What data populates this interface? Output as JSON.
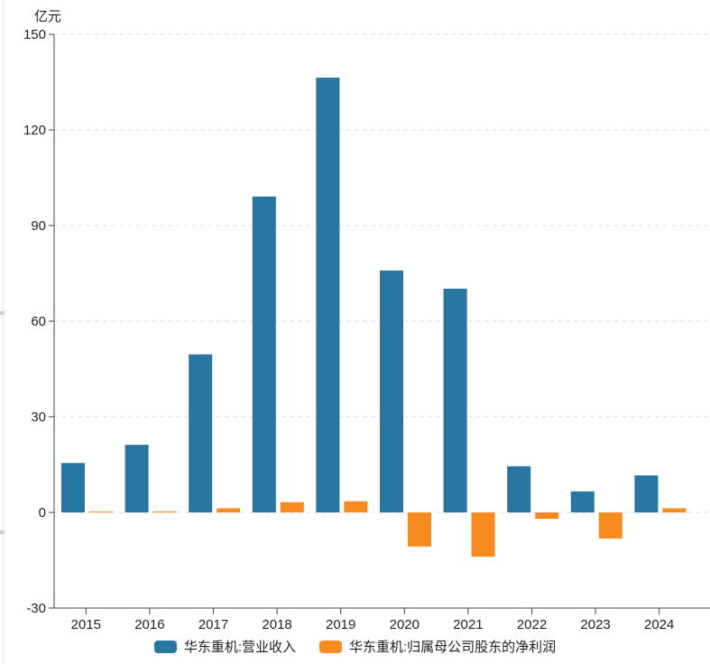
{
  "unit_label": "亿元",
  "chart_data": {
    "type": "bar",
    "title": "",
    "ylabel": "亿元",
    "categories": [
      "2015",
      "2016",
      "2017",
      "2018",
      "2019",
      "2020",
      "2021",
      "2022",
      "2023",
      "2024"
    ],
    "series": [
      {
        "name": "华东重机:营业收入",
        "color": "#2876a2",
        "values": [
          15.5,
          21.2,
          49.6,
          99.1,
          136.4,
          75.9,
          70.2,
          14.5,
          6.6,
          11.6
        ]
      },
      {
        "name": "华东重机:归属母公司股东的净利润",
        "color": "#f78b20",
        "values": [
          0.3,
          0.3,
          1.3,
          3.2,
          3.5,
          -10.7,
          -13.9,
          -2.0,
          -8.2,
          1.3
        ]
      }
    ],
    "ylim": [
      -30,
      150
    ],
    "yticks": [
      150,
      120,
      90,
      60,
      30,
      0,
      -30
    ],
    "grid": "dashed-horizontal",
    "legend_position": "bottom"
  },
  "legend": {
    "items": [
      {
        "label": "华东重机:营业收入",
        "color": "#2876a2"
      },
      {
        "label": "华东重机:归属母公司股东的净利润",
        "color": "#f78b20"
      }
    ]
  },
  "colors": {
    "revenue_bar": "#2876a2",
    "profit_bar": "#f78b20",
    "grid_line": "#dcdcdc",
    "axis_line": "#444444",
    "text": "#222222",
    "background": "#ffffff"
  }
}
